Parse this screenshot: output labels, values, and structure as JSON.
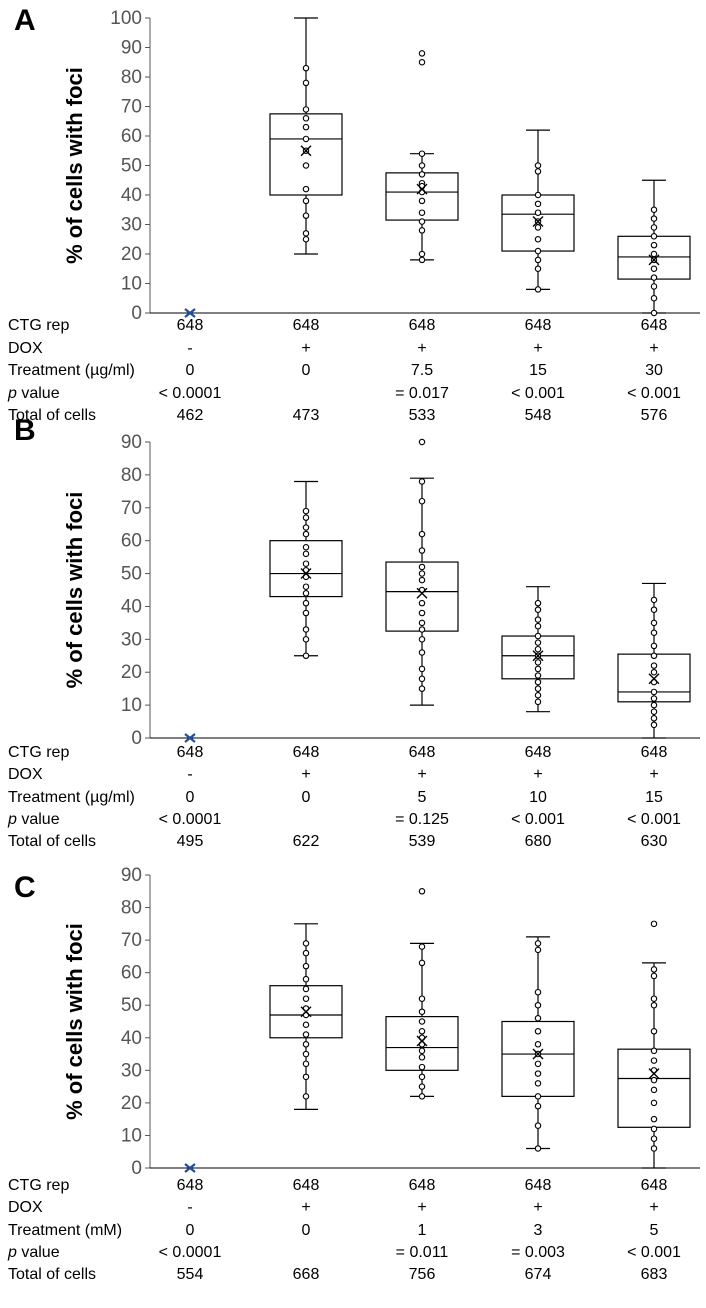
{
  "colors": {
    "box": "#000000",
    "axis": "#555555",
    "control_marker": "#1f4e9c"
  },
  "chart_data": [
    {
      "panel": "A",
      "type": "box",
      "ylabel": "% of cells with foci",
      "ylim": [
        0,
        100
      ],
      "yticks": [
        0,
        10,
        20,
        30,
        40,
        50,
        60,
        70,
        80,
        90,
        100
      ],
      "row_labels": [
        "CTG rep",
        "DOX",
        "Treatment (µg/ml)",
        "p value",
        "Total of cells"
      ],
      "groups": [
        {
          "ctg_rep": "648",
          "dox": "-",
          "treatment": "0",
          "p_value": "< 0.0001",
          "total_cells": "462",
          "control": true,
          "mean": 0,
          "points": [
            0
          ]
        },
        {
          "ctg_rep": "648",
          "dox": "+",
          "treatment": "0",
          "p_value": "",
          "total_cells": "473",
          "min": 20,
          "q1": 40,
          "median": 59,
          "q3": 67.5,
          "max": 100,
          "mean": 55,
          "points": [
            83,
            78,
            69,
            66,
            63,
            59,
            55,
            50,
            42,
            38,
            33,
            27,
            25
          ]
        },
        {
          "ctg_rep": "648",
          "dox": "+",
          "treatment": "7.5",
          "p_value": "= 0.017",
          "total_cells": "533",
          "min": 18,
          "q1": 31.5,
          "median": 41,
          "q3": 47.5,
          "max": 54,
          "mean": 42,
          "points": [
            88,
            85,
            54,
            50,
            47,
            44,
            43,
            41,
            38,
            34,
            31,
            28,
            20,
            18
          ]
        },
        {
          "ctg_rep": "648",
          "dox": "+",
          "treatment": "15",
          "p_value": "< 0.001",
          "total_cells": "548",
          "min": 8,
          "q1": 21,
          "median": 33.5,
          "q3": 40,
          "max": 62,
          "mean": 31,
          "points": [
            50,
            48,
            40,
            37,
            34,
            31,
            29,
            25,
            21,
            18,
            15,
            8
          ]
        },
        {
          "ctg_rep": "648",
          "dox": "+",
          "treatment": "30",
          "p_value": "< 0.001",
          "total_cells": "576",
          "min": 0,
          "q1": 11.5,
          "median": 19,
          "q3": 26,
          "max": 45,
          "mean": 18,
          "points": [
            35,
            32,
            29,
            26,
            23,
            20,
            18,
            15,
            12,
            9,
            5,
            0
          ]
        }
      ]
    },
    {
      "panel": "B",
      "type": "box",
      "ylabel": "% of cells with foci",
      "ylim": [
        0,
        90
      ],
      "yticks": [
        0,
        10,
        20,
        30,
        40,
        50,
        60,
        70,
        80,
        90
      ],
      "row_labels": [
        "CTG rep",
        "DOX",
        "Treatment (µg/ml)",
        "p value",
        "Total of cells"
      ],
      "groups": [
        {
          "ctg_rep": "648",
          "dox": "-",
          "treatment": "0",
          "p_value": "< 0.0001",
          "total_cells": "495",
          "control": true,
          "mean": 0,
          "points": [
            0
          ]
        },
        {
          "ctg_rep": "648",
          "dox": "+",
          "treatment": "0",
          "p_value": "",
          "total_cells": "622",
          "min": 25,
          "q1": 43,
          "median": 50,
          "q3": 60,
          "max": 78,
          "mean": 50,
          "points": [
            69,
            67,
            64,
            62,
            58,
            56,
            53,
            51,
            49,
            46,
            44,
            41,
            38,
            33,
            30,
            25
          ]
        },
        {
          "ctg_rep": "648",
          "dox": "+",
          "treatment": "5",
          "p_value": "= 0.125",
          "total_cells": "539",
          "min": 10,
          "q1": 32.5,
          "median": 44.5,
          "q3": 53.5,
          "max": 79,
          "mean": 44,
          "points": [
            90,
            78,
            72,
            62,
            57,
            52,
            50,
            48,
            45,
            41,
            38,
            35,
            33,
            30,
            26,
            21,
            18,
            15
          ]
        },
        {
          "ctg_rep": "648",
          "dox": "+",
          "treatment": "10",
          "p_value": "< 0.001",
          "total_cells": "680",
          "min": 8,
          "q1": 18,
          "median": 25,
          "q3": 31,
          "max": 46,
          "mean": 25,
          "points": [
            41,
            39,
            36,
            34,
            31,
            29,
            27,
            25,
            23,
            21,
            19,
            17,
            15,
            13,
            11
          ]
        },
        {
          "ctg_rep": "648",
          "dox": "+",
          "treatment": "15",
          "p_value": "< 0.001",
          "total_cells": "630",
          "min": 0,
          "q1": 11,
          "median": 14,
          "q3": 25.5,
          "max": 47,
          "mean": 18,
          "points": [
            42,
            39,
            35,
            32,
            28,
            25,
            22,
            20,
            17,
            14,
            12,
            10,
            8,
            6,
            4
          ]
        }
      ]
    },
    {
      "panel": "C",
      "type": "box",
      "ylabel": "% of cells with foci",
      "ylim": [
        0,
        90
      ],
      "yticks": [
        0,
        10,
        20,
        30,
        40,
        50,
        60,
        70,
        80,
        90
      ],
      "row_labels": [
        "CTG rep",
        "DOX",
        "Treatment (mM)",
        "p value",
        "Total of cells"
      ],
      "groups": [
        {
          "ctg_rep": "648",
          "dox": "-",
          "treatment": "0",
          "p_value": "< 0.0001",
          "total_cells": "554",
          "control": true,
          "mean": 0,
          "points": [
            0
          ]
        },
        {
          "ctg_rep": "648",
          "dox": "+",
          "treatment": "0",
          "p_value": "",
          "total_cells": "668",
          "min": 18,
          "q1": 40,
          "median": 47,
          "q3": 56,
          "max": 75,
          "mean": 48,
          "points": [
            69,
            66,
            62,
            58,
            55,
            52,
            49,
            47,
            44,
            41,
            38,
            35,
            32,
            28,
            22
          ]
        },
        {
          "ctg_rep": "648",
          "dox": "+",
          "treatment": "1",
          "p_value": "= 0.011",
          "total_cells": "756",
          "min": 22,
          "q1": 30,
          "median": 37,
          "q3": 46.5,
          "max": 69,
          "mean": 39,
          "points": [
            85,
            68,
            63,
            52,
            48,
            45,
            42,
            40,
            38,
            36,
            34,
            31,
            28,
            25,
            22
          ]
        },
        {
          "ctg_rep": "648",
          "dox": "+",
          "treatment": "3",
          "p_value": "= 0.003",
          "total_cells": "674",
          "min": 6,
          "q1": 22,
          "median": 35,
          "q3": 45,
          "max": 71,
          "mean": 35,
          "points": [
            69,
            67,
            54,
            50,
            46,
            42,
            38,
            35,
            32,
            29,
            26,
            22,
            19,
            13,
            6
          ]
        },
        {
          "ctg_rep": "648",
          "dox": "+",
          "treatment": "5",
          "p_value": "< 0.001",
          "total_cells": "683",
          "min": 0,
          "q1": 12.5,
          "median": 27.5,
          "q3": 36.5,
          "max": 63,
          "mean": 29,
          "points": [
            75,
            61,
            59,
            52,
            50,
            42,
            36,
            33,
            30,
            27,
            24,
            20,
            15,
            12,
            9,
            6
          ]
        }
      ]
    }
  ]
}
